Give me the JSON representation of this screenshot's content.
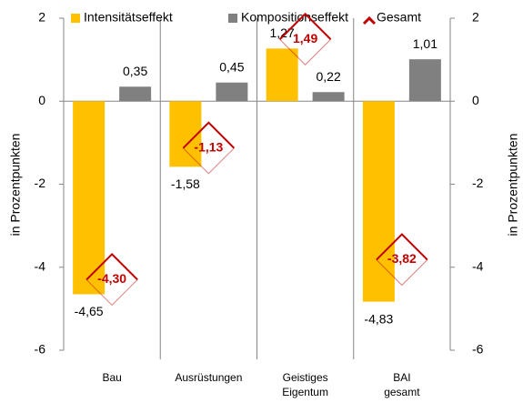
{
  "chart_data": {
    "type": "bar",
    "categories": [
      [
        "Bau"
      ],
      [
        "Ausrüstungen"
      ],
      [
        "Geistiges",
        "Eigentum"
      ],
      [
        "BAI",
        "gesamt"
      ]
    ],
    "series": [
      {
        "name": "Intensitätseffekt",
        "color": "#ffc000",
        "values": [
          -4.65,
          -1.58,
          1.27,
          -4.83
        ],
        "value_labels": [
          "-4,65",
          "-1,58",
          "1,27",
          "-4,83"
        ]
      },
      {
        "name": "Kompositionseffekt",
        "color": "#808080",
        "values": [
          0.35,
          0.45,
          0.22,
          1.01
        ],
        "value_labels": [
          "0,35",
          "0,45",
          "0,22",
          "1,01"
        ]
      },
      {
        "name": "Gesamt",
        "color": "#c00000",
        "type": "marker",
        "values": [
          -4.3,
          -1.13,
          1.49,
          -3.82
        ],
        "value_labels": [
          "-4,30",
          "-1,13",
          "1,49",
          "-3,82"
        ]
      }
    ],
    "ylabel": "in Prozentpunkten",
    "y2label": "in Prozentpunkten",
    "ylim": [
      -6,
      2
    ],
    "yticks": [
      -6,
      -4,
      -2,
      0,
      2
    ],
    "y2lim": [
      -6,
      2
    ],
    "y2ticks": [
      -6,
      -4,
      -2,
      0,
      2
    ]
  }
}
